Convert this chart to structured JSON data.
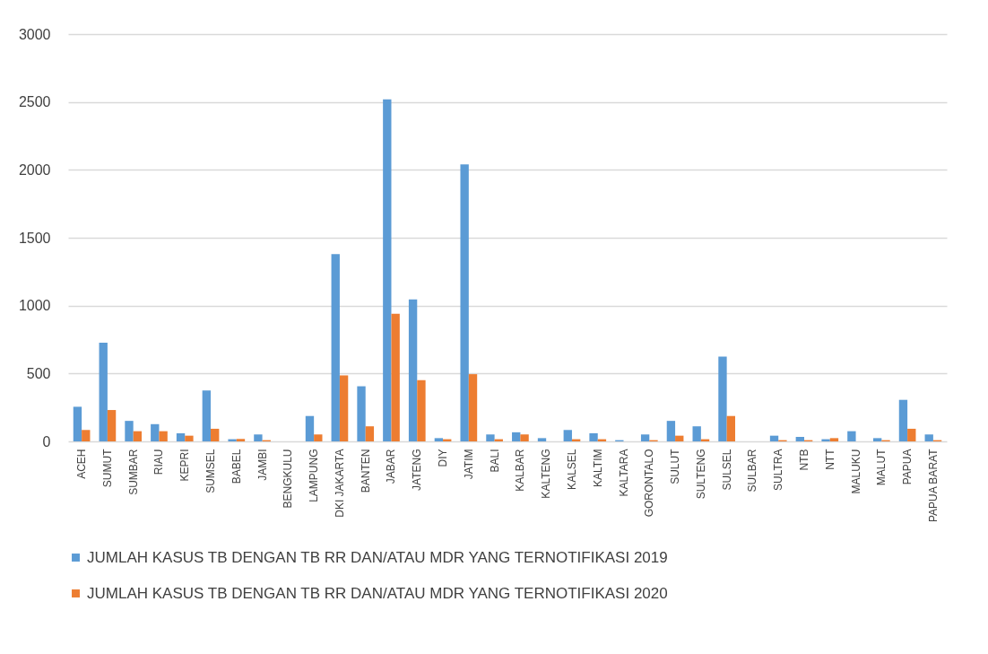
{
  "chart_data": {
    "type": "bar",
    "categories": [
      "ACEH",
      "SUMUT",
      "SUMBAR",
      "RIAU",
      "KEPRI",
      "SUMSEL",
      "BABEL",
      "JAMBI",
      "BENGKULU",
      "LAMPUNG",
      "DKI JAKARTA",
      "BANTEN",
      "JABAR",
      "JATENG",
      "DIY",
      "JATIM",
      "BALI",
      "KALBAR",
      "KALTENG",
      "KALSEL",
      "KALTIM",
      "KALTARA",
      "GORONTALO",
      "SULUT",
      "SULTENG",
      "SULSEL",
      "SULBAR",
      "SULTRA",
      "NTB",
      "NTT",
      "MALUKU",
      "MALUT",
      "PAPUA",
      "PAPUA BARAT"
    ],
    "series": [
      {
        "name": "JUMLAH KASUS TB DENGAN TB RR DAN/ATAU MDR YANG TERNOTIFIKASI 2019",
        "color": "#5b9bd5",
        "values": [
          255,
          727,
          151,
          127,
          60,
          375,
          16,
          51,
          null,
          187,
          1380,
          406,
          2520,
          1045,
          24,
          2040,
          51,
          67,
          24,
          84,
          60,
          9,
          51,
          151,
          111,
          624,
          null,
          42,
          33,
          16,
          75,
          24,
          306,
          51
        ]
      },
      {
        "name": "JUMLAH KASUS TB DENGAN TB RR DAN/ATAU MDR YANG TERNOTIFIKASI 2020",
        "color": "#ed7d31",
        "values": [
          84,
          231,
          75,
          75,
          42,
          93,
          18,
          9,
          null,
          51,
          486,
          111,
          940,
          451,
          16,
          495,
          16,
          51,
          0,
          16,
          16,
          0,
          9,
          42,
          16,
          187,
          null,
          9,
          9,
          24,
          0,
          9,
          93,
          9
        ]
      }
    ],
    "ylim": [
      0,
      3000
    ],
    "yticks": [
      0,
      500,
      1000,
      1500,
      2000,
      2500,
      3000
    ],
    "grid": "y",
    "legend": "bottom"
  }
}
